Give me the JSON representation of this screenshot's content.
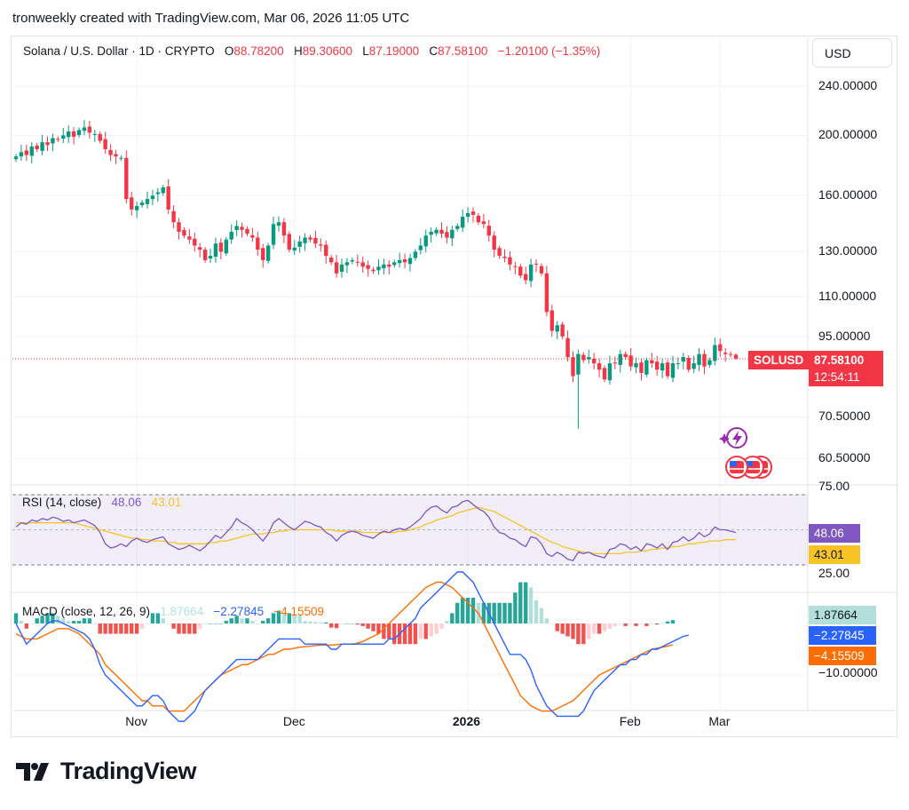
{
  "header": {
    "text": "tronweekly created with TradingView.com, Mar 06, 2026 11:05 UTC"
  },
  "legend": {
    "symbol": "Solana / U.S. Dollar · 1D · CRYPTO",
    "o_label": "O",
    "o_value": "88.78200",
    "h_label": "H",
    "h_value": "89.30600",
    "l_label": "L",
    "l_value": "87.19000",
    "c_label": "C",
    "c_value": "87.58100",
    "change": "−1.20100 (−1.35%)"
  },
  "currency_button": "USD",
  "price_axis": [
    "240.00000",
    "200.00000",
    "160.00000",
    "130.00000",
    "110.00000",
    "95.00000",
    "70.50000",
    "60.50000"
  ],
  "price_tag": {
    "symbol": "SOLUSD",
    "price": "87.58100",
    "countdown": "12:54:11"
  },
  "rsi": {
    "title": "RSI (14, close)",
    "rsi_value": "48.06",
    "ma_value": "43.01",
    "axis_top": "75.00",
    "axis_bottom": "25.00"
  },
  "macd": {
    "title": "MACD (close, 12, 26, 9)",
    "hist_value": "1.87664",
    "macd_value": "−2.27845",
    "signal_value": "−4.15509",
    "axis_label": "−10.00000"
  },
  "time_axis": [
    "Nov",
    "Dec",
    "2026",
    "Feb",
    "Mar"
  ],
  "brand": {
    "name": "TradingView"
  },
  "colors": {
    "up": "#089981",
    "down": "#f23645",
    "rsi_line": "#7e57c2",
    "rsi_ma": "#f7c325",
    "macd_line": "#2962ff",
    "signal_line": "#ff6d00",
    "hist_up": "#26a69a",
    "hist_down": "#ef5350"
  },
  "chart_data": {
    "type": "candlestick",
    "symbol": "SOLUSD",
    "price_scale": "log",
    "closes": [
      185,
      188,
      186,
      192,
      190,
      195,
      193,
      198,
      197,
      200,
      203,
      199,
      204,
      206,
      202,
      201,
      196,
      190,
      186,
      185,
      184,
      158,
      152,
      154,
      156,
      158,
      160,
      162,
      165,
      152,
      145,
      140,
      138,
      136,
      133,
      131,
      126,
      128,
      134,
      130,
      136,
      140,
      143,
      141,
      139,
      137,
      131,
      126,
      133,
      144,
      145,
      138,
      131,
      132,
      135,
      137,
      136,
      134,
      133,
      128,
      125,
      120,
      124,
      125,
      126,
      125,
      123,
      122,
      121,
      123,
      124,
      123,
      125,
      126,
      125,
      127,
      130,
      133,
      138,
      140,
      141,
      139,
      137,
      141,
      143,
      148,
      150,
      149,
      145,
      144,
      138,
      131,
      128,
      127,
      124,
      123,
      119,
      117,
      124,
      124,
      120,
      104,
      97,
      99,
      95,
      88,
      82,
      89,
      87,
      88,
      86,
      84,
      81,
      86,
      86,
      89,
      88,
      85,
      86,
      83,
      87,
      86,
      84,
      86,
      82,
      86,
      86,
      88,
      84,
      86,
      89,
      85,
      87,
      92,
      90,
      89,
      88.782,
      87.581
    ],
    "current": {
      "open": 88.782,
      "high": 89.306,
      "low": 87.19,
      "close": 87.581,
      "change": -1.201,
      "change_pct": -1.35
    },
    "rsi": {
      "period": 14,
      "ylim": [
        25,
        75
      ],
      "last": 48.06,
      "ma_last": 43.01,
      "values": [
        52,
        55,
        54,
        57,
        56,
        58,
        57,
        59,
        58,
        56,
        57,
        55,
        56,
        57,
        55,
        53,
        48,
        40,
        37,
        38,
        40,
        38,
        42,
        44,
        42,
        41,
        43,
        44,
        45,
        40,
        38,
        36,
        37,
        39,
        37,
        35,
        38,
        42,
        46,
        44,
        48,
        52,
        58,
        55,
        53,
        50,
        46,
        42,
        47,
        55,
        58,
        55,
        52,
        50,
        53,
        56,
        55,
        53,
        52,
        48,
        46,
        42,
        46,
        48,
        49,
        48,
        46,
        45,
        44,
        47,
        49,
        48,
        50,
        51,
        50,
        52,
        55,
        58,
        63,
        66,
        67,
        64,
        62,
        66,
        67,
        70,
        71,
        68,
        65,
        63,
        59,
        52,
        48,
        47,
        44,
        43,
        40,
        38,
        45,
        44,
        40,
        33,
        31,
        34,
        32,
        29,
        28,
        34,
        33,
        34,
        32,
        31,
        30,
        36,
        37,
        40,
        39,
        36,
        38,
        35,
        40,
        39,
        37,
        40,
        36,
        41,
        42,
        45,
        42,
        44,
        48,
        45,
        47,
        52,
        50,
        50,
        49,
        48.06
      ],
      "ma": [
        55,
        55,
        55,
        55,
        55,
        55,
        55,
        55,
        55,
        55,
        55,
        55,
        54,
        53,
        52,
        51,
        50,
        49,
        48,
        47,
        46,
        45,
        44,
        44,
        43,
        43,
        42,
        42,
        42,
        41,
        41,
        40,
        40,
        40,
        40,
        40,
        40,
        41,
        41,
        42,
        42,
        43,
        44,
        45,
        46,
        47,
        47,
        47,
        48,
        48,
        49,
        49,
        50,
        50,
        50,
        50,
        50,
        50,
        50,
        50,
        50,
        49,
        49,
        49,
        49,
        49,
        48,
        48,
        48,
        48,
        48,
        48,
        48,
        49,
        49,
        50,
        51,
        52,
        54,
        55,
        57,
        58,
        59,
        60,
        62,
        63,
        64,
        65,
        66,
        65,
        64,
        63,
        61,
        59,
        57,
        55,
        53,
        51,
        49,
        47,
        45,
        43,
        41,
        40,
        38,
        37,
        36,
        35,
        34,
        34,
        33,
        33,
        33,
        33,
        33,
        33,
        34,
        34,
        34,
        35,
        35,
        36,
        36,
        37,
        37,
        38,
        38,
        39,
        40,
        40,
        41,
        41,
        42,
        42,
        42,
        43,
        43,
        43.01
      ]
    },
    "macd": {
      "params": [
        12,
        26,
        9
      ],
      "histogram_last": 1.87664,
      "macd_last": -2.27845,
      "signal_last": -4.15509,
      "axis_tick": -10,
      "macd": [
        0,
        -2,
        -4,
        -3,
        -2,
        -1,
        0,
        0.5,
        0.5,
        0,
        -0.5,
        -1,
        -1.5,
        -2,
        -3,
        -5,
        -8,
        -10,
        -11,
        -12,
        -13,
        -14,
        -15,
        -16,
        -16,
        -15,
        -14,
        -14,
        -15,
        -17,
        -18,
        -19,
        -19,
        -18,
        -17,
        -15,
        -13,
        -12,
        -11,
        -10,
        -9,
        -8,
        -7,
        -7,
        -7,
        -7,
        -7,
        -6,
        -5,
        -4,
        -3,
        -3,
        -3,
        -3,
        -3,
        -4,
        -4,
        -4,
        -4,
        -4,
        -5,
        -5,
        -4,
        -4,
        -4,
        -4,
        -4,
        -4,
        -4,
        -4,
        -4,
        -3,
        -3,
        -2,
        -1,
        0,
        1,
        3,
        4,
        5,
        6,
        7,
        8,
        9,
        10,
        10,
        9,
        8,
        6,
        4,
        2,
        0,
        -2,
        -4,
        -6,
        -6,
        -6,
        -7,
        -9,
        -12,
        -14,
        -16,
        -17,
        -18,
        -18,
        -18,
        -18,
        -18,
        -17,
        -15,
        -13,
        -12,
        -11,
        -10,
        -9,
        -8,
        -8,
        -7,
        -7,
        -6,
        -6,
        -5,
        -5,
        -4.5,
        -4,
        -3.5,
        -3,
        -2.5,
        -2.278
      ],
      "signal": [
        -2,
        -2.5,
        -3,
        -3,
        -3,
        -2.5,
        -2,
        -1.5,
        -1,
        -1,
        -1,
        -1.5,
        -2,
        -3,
        -4,
        -5,
        -6,
        -8,
        -9,
        -10,
        -11,
        -12,
        -13,
        -14,
        -15,
        -15,
        -16,
        -16,
        -16,
        -17,
        -17,
        -17,
        -17,
        -16,
        -15,
        -14,
        -13,
        -12,
        -11,
        -10,
        -9.5,
        -9,
        -8.5,
        -8,
        -8,
        -7.5,
        -7,
        -6.5,
        -6,
        -6,
        -5.5,
        -5,
        -5,
        -4.8,
        -4.6,
        -4.5,
        -4.4,
        -4.3,
        -4.2,
        -4.2,
        -4.2,
        -4.1,
        -4,
        -4,
        -4,
        -3.8,
        -3.5,
        -3,
        -2.5,
        -2,
        -1,
        0,
        1,
        2,
        3,
        4,
        5,
        6,
        7,
        7.5,
        8,
        8,
        7.5,
        7,
        6,
        5,
        4,
        3,
        2,
        0,
        -2,
        -4,
        -6,
        -8,
        -10,
        -12,
        -14,
        -15,
        -16,
        -16.5,
        -17,
        -17,
        -17,
        -16.5,
        -16,
        -15.5,
        -15,
        -14,
        -13,
        -12,
        -11,
        -10,
        -9.5,
        -9,
        -8.5,
        -8,
        -7.5,
        -7,
        -6.5,
        -6,
        -5.5,
        -5,
        -4.8,
        -4.6,
        -4.4,
        -4.155
      ]
    }
  }
}
